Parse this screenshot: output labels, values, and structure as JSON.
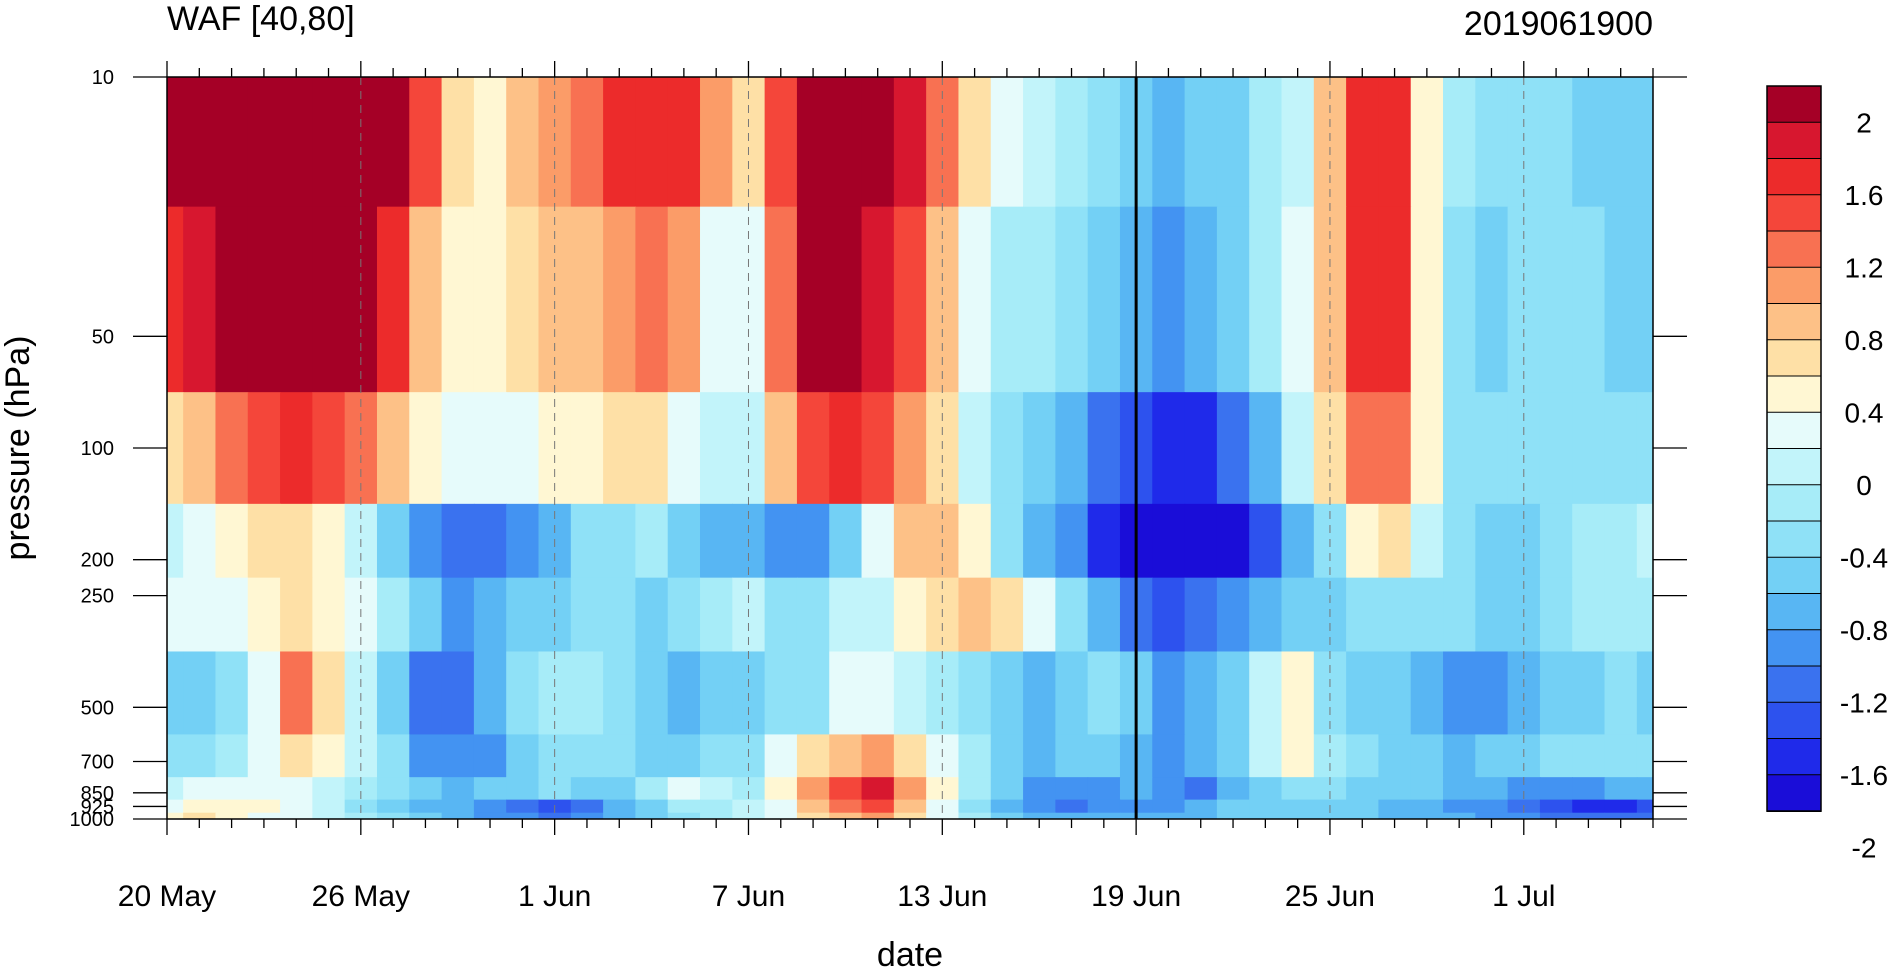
{
  "chart_data": {
    "type": "heatmap",
    "title_left": "WAF [40,80]",
    "title_right": "2019061900",
    "xlabel": "date",
    "ylabel": "pressure (hPa)",
    "x_tick_labels": [
      "20 May",
      "26 May",
      "1 Jun",
      "7 Jun",
      "13 Jun",
      "19 Jun",
      "25 Jun",
      "1 Jul"
    ],
    "x_days": [
      "20 May",
      "21 May",
      "22 May",
      "23 May",
      "24 May",
      "25 May",
      "26 May",
      "27 May",
      "28 May",
      "29 May",
      "30 May",
      "31 May",
      "1 Jun",
      "2 Jun",
      "3 Jun",
      "4 Jun",
      "5 Jun",
      "6 Jun",
      "7 Jun",
      "8 Jun",
      "9 Jun",
      "10 Jun",
      "11 Jun",
      "12 Jun",
      "13 Jun",
      "14 Jun",
      "15 Jun",
      "16 Jun",
      "17 Jun",
      "18 Jun",
      "19 Jun",
      "20 Jun",
      "21 Jun",
      "22 Jun",
      "23 Jun",
      "24 Jun",
      "25 Jun",
      "26 Jun",
      "27 Jun",
      "28 Jun",
      "29 Jun",
      "30 Jun",
      "1 Jul",
      "2 Jul",
      "3 Jul",
      "4 Jul",
      "5 Jul"
    ],
    "y_levels": [
      10,
      50,
      100,
      200,
      250,
      500,
      700,
      850,
      925,
      1000
    ],
    "y_tick_labels": [
      "10",
      "50",
      "100",
      "200",
      "250",
      "500",
      "700",
      "850",
      "925",
      "1000"
    ],
    "y_scale": "log",
    "y_inverted": true,
    "marker_date": "19 Jun",
    "colorbar": {
      "labels": [
        "2",
        "1.6",
        "1.2",
        "0.8",
        "0.4",
        "0",
        "-0.4",
        "-0.8",
        "-1.2",
        "-1.6",
        "-2"
      ],
      "levels": [
        -2.2,
        -2.0,
        -1.8,
        -1.6,
        -1.4,
        -1.2,
        -1.0,
        -0.8,
        -0.6,
        -0.4,
        -0.2,
        0.0,
        0.2,
        0.4,
        0.6,
        0.8,
        1.0,
        1.2,
        1.4,
        1.6,
        1.8,
        2.0
      ],
      "colors": [
        "#a50026",
        "#d7172f",
        "#ec2b2b",
        "#f4463a",
        "#f87152",
        "#fb9c68",
        "#fdc187",
        "#fee0a6",
        "#fff7d3",
        "#e6fbfb",
        "#c2f4fa",
        "#a7ecf8",
        "#8fe1f7",
        "#73d0f5",
        "#58b6f3",
        "#4393f2",
        "#3a72ef",
        "#2d52ee",
        "#1f2aea",
        "#1a0dd8"
      ]
    },
    "values": [
      [
        2.4,
        2.5,
        2.6,
        2.6,
        2.5,
        2.4,
        2.3,
        2.2,
        1.4,
        0.6,
        0.5,
        0.9,
        1.1,
        1.2,
        1.6,
        1.7,
        1.6,
        1.0,
        0.6,
        1.4,
        2.2,
        2.3,
        2.2,
        1.8,
        1.2,
        0.6,
        0.2,
        0.1,
        -0.1,
        -0.4,
        -0.6,
        -0.7,
        -0.6,
        -0.5,
        -0.1,
        0.0,
        0.8,
        1.7,
        1.6,
        0.4,
        -0.2,
        -0.4,
        -0.4,
        -0.3,
        -0.5,
        -0.6,
        -0.6
      ],
      [
        1.6,
        1.8,
        2.1,
        2.3,
        2.3,
        2.2,
        2.0,
        1.6,
        0.9,
        0.5,
        0.4,
        0.6,
        0.8,
        0.9,
        1.1,
        1.2,
        1.0,
        0.3,
        0.2,
        1.2,
        2.0,
        2.2,
        1.8,
        1.4,
        0.9,
        0.2,
        -0.1,
        -0.2,
        -0.4,
        -0.6,
        -0.8,
        -0.9,
        -0.8,
        -0.5,
        -0.2,
        0.3,
        0.8,
        1.6,
        1.6,
        0.5,
        -0.3,
        -0.5,
        -0.4,
        -0.3,
        -0.4,
        -0.5,
        -0.5
      ],
      [
        0.6,
        0.9,
        1.2,
        1.5,
        1.6,
        1.5,
        1.2,
        0.8,
        0.4,
        0.2,
        0.2,
        0.3,
        0.4,
        0.5,
        0.6,
        0.6,
        0.3,
        0.0,
        0.0,
        0.8,
        1.4,
        1.6,
        1.4,
        1.1,
        0.6,
        0.0,
        -0.3,
        -0.5,
        -0.8,
        -1.1,
        -1.4,
        -1.6,
        -1.5,
        -1.2,
        -0.8,
        0.1,
        0.7,
        1.2,
        1.2,
        0.4,
        -0.3,
        -0.4,
        -0.4,
        -0.3,
        -0.3,
        -0.3,
        -0.3
      ],
      [
        0.0,
        0.2,
        0.5,
        0.6,
        0.6,
        0.4,
        0.0,
        -0.6,
        -0.9,
        -1.1,
        -1.1,
        -1.0,
        -0.7,
        -0.4,
        -0.3,
        -0.2,
        -0.5,
        -0.7,
        -0.8,
        -1.0,
        -1.0,
        -0.6,
        0.2,
        0.8,
        0.8,
        0.5,
        -0.3,
        -0.7,
        -1.0,
        -1.5,
        -2.1,
        -2.3,
        -2.1,
        -1.8,
        -1.4,
        -0.8,
        -0.4,
        0.5,
        0.6,
        0.0,
        -0.4,
        -0.5,
        -0.5,
        -0.4,
        -0.2,
        -0.1,
        0.0
      ],
      [
        0.2,
        0.3,
        0.3,
        0.5,
        0.6,
        0.4,
        0.2,
        -0.2,
        -0.6,
        -0.9,
        -0.8,
        -0.6,
        -0.5,
        -0.3,
        -0.4,
        -0.5,
        -0.3,
        -0.2,
        0.1,
        -0.3,
        -0.4,
        0.0,
        0.1,
        0.4,
        0.7,
        0.9,
        0.7,
        0.3,
        -0.3,
        -0.7,
        -1.2,
        -1.3,
        -1.1,
        -0.9,
        -0.7,
        -0.5,
        -0.5,
        -0.4,
        -0.3,
        -0.3,
        -0.4,
        -0.5,
        -0.6,
        -0.4,
        -0.2,
        -0.2,
        -0.1
      ],
      [
        -0.6,
        -0.5,
        -0.3,
        0.2,
        1.2,
        0.6,
        0.0,
        -0.5,
        -1.1,
        -1.2,
        -0.7,
        -0.3,
        -0.1,
        -0.2,
        -0.4,
        -0.6,
        -0.7,
        -0.6,
        -0.5,
        -0.4,
        -0.3,
        0.2,
        0.2,
        0.1,
        -0.2,
        -0.4,
        -0.6,
        -0.8,
        -0.5,
        -0.4,
        -0.6,
        -0.9,
        -0.8,
        -0.6,
        0.1,
        0.4,
        -0.3,
        -0.5,
        -0.6,
        -0.8,
        -1.0,
        -0.9,
        -0.7,
        -0.5,
        -0.5,
        -0.4,
        -0.5
      ],
      [
        -0.3,
        -0.3,
        -0.1,
        0.3,
        0.7,
        0.5,
        0.1,
        -0.4,
        -0.9,
        -1.0,
        -0.9,
        -0.5,
        -0.3,
        -0.3,
        -0.4,
        -0.5,
        -0.5,
        -0.4,
        -0.3,
        0.2,
        0.6,
        0.9,
        1.0,
        0.7,
        0.3,
        -0.2,
        -0.5,
        -0.7,
        -0.5,
        -0.5,
        -0.7,
        -0.9,
        -0.8,
        -0.6,
        0.0,
        0.4,
        -0.2,
        -0.4,
        -0.5,
        -0.6,
        -0.7,
        -0.6,
        -0.5,
        -0.4,
        -0.4,
        -0.4,
        -0.4
      ],
      [
        0.1,
        0.2,
        0.3,
        0.3,
        0.2,
        0.0,
        -0.2,
        -0.4,
        -0.6,
        -0.7,
        -0.6,
        -0.5,
        -0.4,
        -0.5,
        -0.5,
        -0.2,
        0.2,
        0.0,
        -0.1,
        0.4,
        1.0,
        1.5,
        1.8,
        1.0,
        0.5,
        -0.2,
        -0.6,
        -0.9,
        -1.0,
        -0.9,
        -0.8,
        -1.0,
        -1.2,
        -0.8,
        -0.6,
        -0.4,
        -0.4,
        -0.5,
        -0.5,
        -0.6,
        -0.7,
        -0.8,
        -0.9,
        -1.0,
        -0.9,
        -0.8,
        -0.8
      ],
      [
        0.3,
        0.5,
        0.4,
        0.4,
        0.3,
        0.0,
        -0.3,
        -0.5,
        -0.7,
        -0.8,
        -0.9,
        -1.1,
        -1.4,
        -1.2,
        -0.8,
        -0.5,
        -0.2,
        -0.1,
        0.0,
        0.3,
        0.8,
        1.3,
        1.4,
        0.8,
        0.3,
        -0.3,
        -0.8,
        -1.0,
        -1.1,
        -1.0,
        -0.9,
        -0.9,
        -0.8,
        -0.6,
        -0.5,
        -0.5,
        -0.5,
        -0.6,
        -0.7,
        -0.8,
        -0.9,
        -1.0,
        -1.2,
        -1.4,
        -1.6,
        -1.5,
        -1.3
      ],
      [
        0.4,
        0.6,
        0.5,
        0.3,
        0.2,
        0.0,
        -0.2,
        -0.4,
        -0.6,
        -0.8,
        -0.9,
        -1.0,
        -1.1,
        -1.0,
        -0.8,
        -0.5,
        -0.3,
        -0.1,
        0.0,
        0.3,
        0.6,
        0.9,
        1.0,
        0.6,
        0.2,
        -0.2,
        -0.5,
        -0.7,
        -0.8,
        -0.8,
        -0.8,
        -0.8,
        -0.7,
        -0.6,
        -0.5,
        -0.5,
        -0.5,
        -0.6,
        -0.7,
        -0.8,
        -0.8,
        -0.9,
        -1.0,
        -1.1,
        -1.2,
        -1.2,
        -1.1
      ]
    ]
  }
}
